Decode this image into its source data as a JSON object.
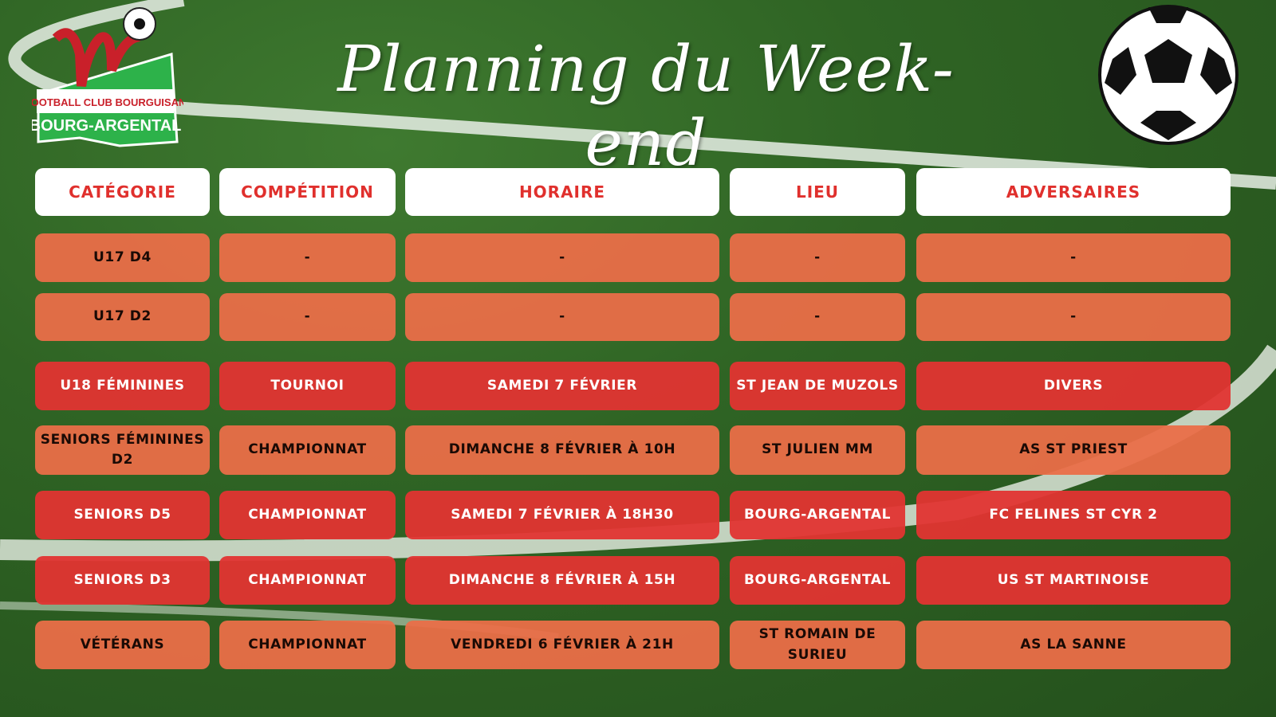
{
  "title": "Planning du Week-end",
  "logo": {
    "line1": "Football Club Bourguisan",
    "line2": "BOURG-ARGENTAL"
  },
  "colors": {
    "header_bg": "#ffffff",
    "header_text": "#e0302d",
    "orange": "#ea6e48",
    "red": "#e23432"
  },
  "headers": [
    "CATÉGORIE",
    "COMPÉTITION",
    "HORAIRE",
    "LIEU",
    "ADVERSAIRES"
  ],
  "rows": [
    {
      "style": "orange",
      "cells": [
        "U17 D4",
        "-",
        "-",
        "-",
        "-"
      ]
    },
    {
      "style": "orange",
      "cells": [
        "U17 D2",
        "-",
        "-",
        "-",
        "-"
      ]
    },
    {
      "style": "red",
      "cells": [
        "U18 FÉMININES",
        "TOURNOI",
        "SAMEDI 7 FÉVRIER",
        "ST JEAN DE MUZOLS",
        "DIVERS"
      ]
    },
    {
      "style": "orange",
      "cells": [
        "SENIORS FÉMININES D2",
        "CHAMPIONNAT",
        "DIMANCHE 8 FÉVRIER À 10H",
        "ST JULIEN MM",
        "AS ST PRIEST"
      ]
    },
    {
      "style": "red",
      "cells": [
        "SENIORS D5",
        "CHAMPIONNAT",
        "SAMEDI 7 FÉVRIER À 18H30",
        "BOURG-ARGENTAL",
        "FC FELINES ST CYR 2"
      ]
    },
    {
      "style": "red",
      "cells": [
        "SENIORS D3",
        "CHAMPIONNAT",
        "DIMANCHE 8 FÉVRIER À 15H",
        "BOURG-ARGENTAL",
        "US ST MARTINOISE"
      ]
    },
    {
      "style": "orange",
      "cells": [
        "VÉTÉRANS",
        "CHAMPIONNAT",
        "VENDREDI 6 FÉVRIER À 21H",
        "ST ROMAIN DE SURIEU",
        "AS LA SANNE"
      ]
    }
  ]
}
